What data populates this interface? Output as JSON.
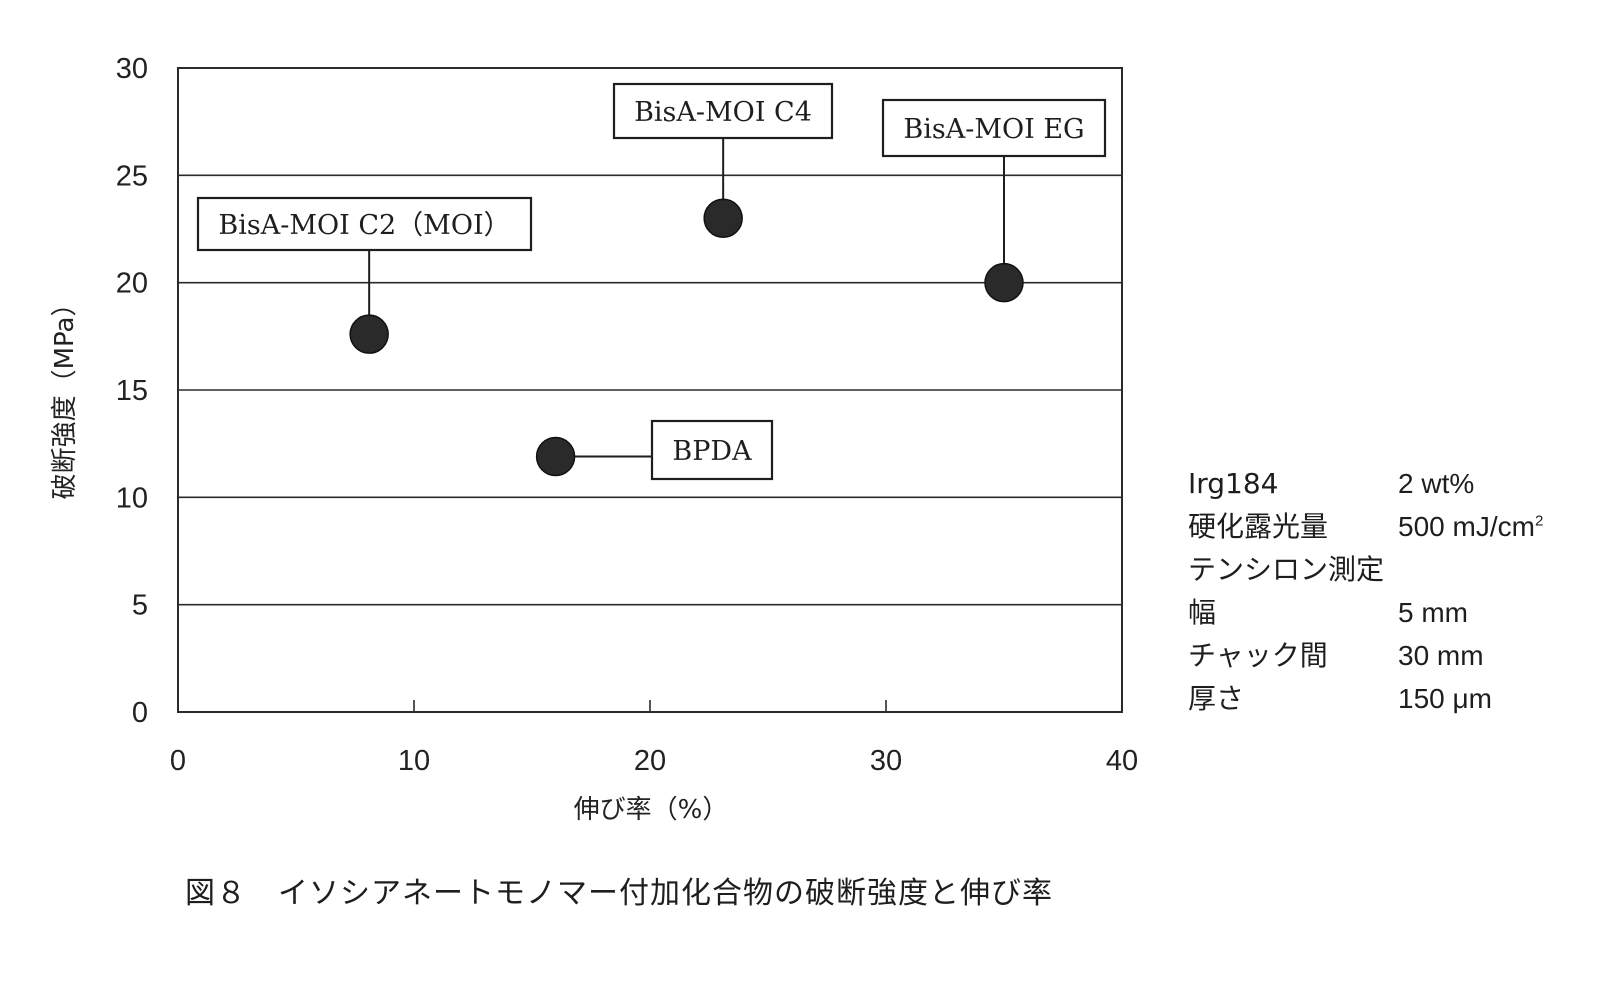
{
  "chart_data": {
    "type": "scatter",
    "xlabel": "伸び率（%）",
    "ylabel": "破断強度（MPa）",
    "xlim": [
      0,
      40
    ],
    "ylim": [
      0,
      30
    ],
    "x_ticks": [
      0,
      10,
      20,
      30,
      40
    ],
    "y_ticks": [
      0,
      5,
      10,
      15,
      20,
      25,
      30
    ],
    "grid": "horizontal",
    "points": [
      {
        "label": "BisA-MOI C2（MOI）",
        "x": 8.1,
        "y": 17.6
      },
      {
        "label": "BisA-MOI C4",
        "x": 23.1,
        "y": 23.0
      },
      {
        "label": "BisA-MOI EG",
        "x": 35.0,
        "y": 20.0
      },
      {
        "label": "BPDA",
        "x": 16.0,
        "y": 11.9
      }
    ],
    "point_color": "#2a2a2a"
  },
  "conditions": [
    {
      "label": "Irg184",
      "value": "2 wt%"
    },
    {
      "label": "硬化露光量",
      "value": "500 mJ/cm",
      "sup": "2"
    },
    {
      "label": "テンシロン測定",
      "value": ""
    },
    {
      "label": "幅",
      "value": "5 mm"
    },
    {
      "label": "チャック間",
      "value": "30 mm"
    },
    {
      "label": "厚さ",
      "value": "150 μm"
    }
  ],
  "caption": "図８　イソシアネートモノマー付加化合物の破断強度と伸び率"
}
